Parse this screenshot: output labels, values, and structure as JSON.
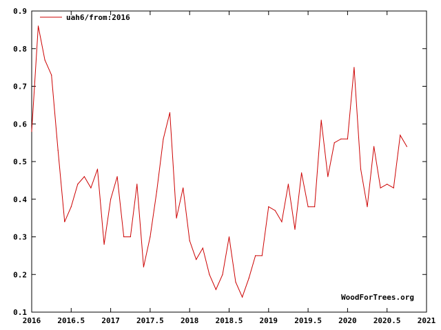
{
  "chart_data": {
    "type": "line",
    "title": "",
    "xlabel": "",
    "ylabel": "",
    "xlim": [
      2016,
      2021
    ],
    "ylim": [
      0.1,
      0.9
    ],
    "x_ticks": [
      "2016",
      "2016.5",
      "2017",
      "2017.5",
      "2018",
      "2018.5",
      "2019",
      "2019.5",
      "2020",
      "2020.5",
      "2021"
    ],
    "y_ticks": [
      "0.1",
      "0.2",
      "0.3",
      "0.4",
      "0.5",
      "0.6",
      "0.7",
      "0.8",
      "0.9"
    ],
    "grid": false,
    "legend_position": "top-left",
    "series": [
      {
        "name": "uah6/from:2016",
        "color": "#cc0000",
        "points": [
          [
            2016.0,
            0.58
          ],
          [
            2016.083,
            0.86
          ],
          [
            2016.167,
            0.77
          ],
          [
            2016.25,
            0.73
          ],
          [
            2016.333,
            0.53
          ],
          [
            2016.417,
            0.34
          ],
          [
            2016.5,
            0.38
          ],
          [
            2016.583,
            0.44
          ],
          [
            2016.667,
            0.46
          ],
          [
            2016.75,
            0.43
          ],
          [
            2016.833,
            0.48
          ],
          [
            2016.917,
            0.28
          ],
          [
            2017.0,
            0.4
          ],
          [
            2017.083,
            0.46
          ],
          [
            2017.167,
            0.3
          ],
          [
            2017.25,
            0.3
          ],
          [
            2017.333,
            0.44
          ],
          [
            2017.417,
            0.22
          ],
          [
            2017.5,
            0.3
          ],
          [
            2017.583,
            0.42
          ],
          [
            2017.667,
            0.56
          ],
          [
            2017.75,
            0.63
          ],
          [
            2017.833,
            0.35
          ],
          [
            2017.917,
            0.43
          ],
          [
            2018.0,
            0.29
          ],
          [
            2018.083,
            0.24
          ],
          [
            2018.167,
            0.27
          ],
          [
            2018.25,
            0.2
          ],
          [
            2018.333,
            0.16
          ],
          [
            2018.417,
            0.2
          ],
          [
            2018.5,
            0.3
          ],
          [
            2018.583,
            0.18
          ],
          [
            2018.667,
            0.14
          ],
          [
            2018.75,
            0.19
          ],
          [
            2018.833,
            0.25
          ],
          [
            2018.917,
            0.25
          ],
          [
            2019.0,
            0.38
          ],
          [
            2019.083,
            0.37
          ],
          [
            2019.167,
            0.34
          ],
          [
            2019.25,
            0.44
          ],
          [
            2019.333,
            0.32
          ],
          [
            2019.417,
            0.47
          ],
          [
            2019.5,
            0.38
          ],
          [
            2019.583,
            0.38
          ],
          [
            2019.667,
            0.61
          ],
          [
            2019.75,
            0.46
          ],
          [
            2019.833,
            0.55
          ],
          [
            2019.917,
            0.56
          ],
          [
            2020.0,
            0.56
          ],
          [
            2020.083,
            0.75
          ],
          [
            2020.167,
            0.48
          ],
          [
            2020.25,
            0.38
          ],
          [
            2020.333,
            0.54
          ],
          [
            2020.417,
            0.43
          ],
          [
            2020.5,
            0.44
          ],
          [
            2020.583,
            0.43
          ],
          [
            2020.667,
            0.57
          ],
          [
            2020.75,
            0.54
          ]
        ]
      }
    ],
    "annotations": [
      "WoodForTrees.org"
    ]
  },
  "colors": {
    "background": "#ffffff",
    "axis": "#000000",
    "series_line": "#cc0000"
  }
}
